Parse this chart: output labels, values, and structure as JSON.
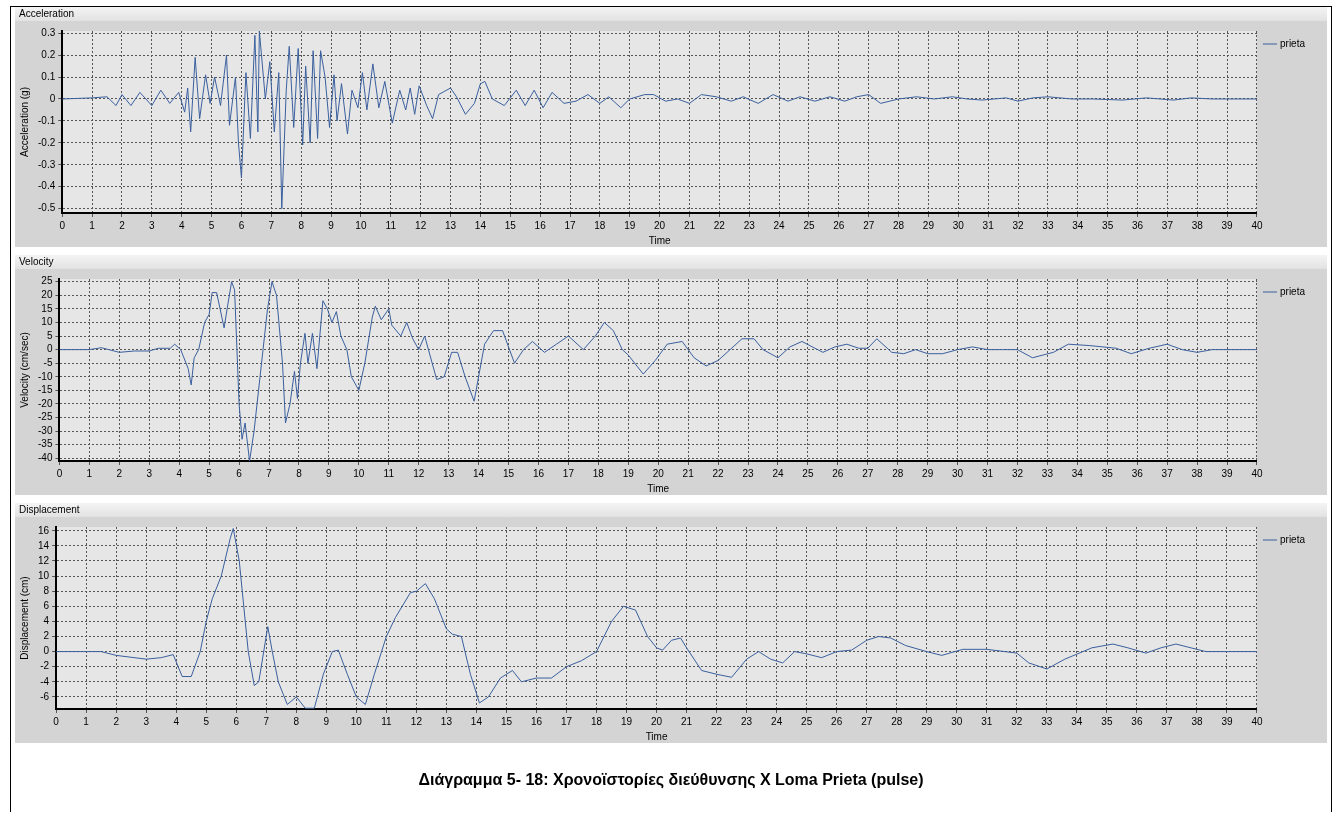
{
  "chart_data": [
    {
      "type": "line",
      "title": "Acceleration",
      "xlabel": "Time",
      "ylabel": "Acceleration (g)",
      "xlim": [
        0,
        40
      ],
      "xticks": [
        0,
        1,
        2,
        3,
        4,
        5,
        6,
        7,
        8,
        9,
        10,
        11,
        12,
        13,
        14,
        15,
        16,
        17,
        18,
        19,
        20,
        21,
        22,
        23,
        24,
        25,
        26,
        27,
        28,
        29,
        30,
        31,
        32,
        33,
        34,
        35,
        36,
        37,
        38,
        39,
        40
      ],
      "ylim": [
        -0.52,
        0.31
      ],
      "yticks": [
        -0.5,
        -0.4,
        -0.3,
        -0.2,
        -0.1,
        0,
        0.1,
        0.2,
        0.3
      ],
      "grid": true,
      "legend": "right",
      "marker": "none",
      "x": [
        0,
        1,
        1.5,
        1.8,
        2,
        2.3,
        2.6,
        3,
        3.3,
        3.6,
        3.9,
        4.1,
        4.2,
        4.3,
        4.45,
        4.6,
        4.8,
        4.95,
        5.1,
        5.3,
        5.5,
        5.6,
        5.8,
        5.9,
        6,
        6.15,
        6.3,
        6.45,
        6.55,
        6.6,
        6.8,
        6.95,
        7.1,
        7.25,
        7.35,
        7.5,
        7.6,
        7.75,
        7.9,
        8.05,
        8.15,
        8.3,
        8.4,
        8.55,
        8.65,
        8.8,
        8.95,
        9.1,
        9.2,
        9.35,
        9.55,
        9.7,
        9.9,
        10.05,
        10.2,
        10.4,
        10.6,
        10.8,
        11.05,
        11.3,
        11.5,
        11.65,
        11.8,
        11.95,
        12.2,
        12.4,
        12.6,
        13,
        13.2,
        13.5,
        13.8,
        14,
        14.15,
        14.4,
        14.8,
        15.2,
        15.5,
        15.8,
        16.1,
        16.4,
        16.8,
        17.2,
        17.6,
        18,
        18.3,
        18.7,
        19,
        19.5,
        19.8,
        20.2,
        20.6,
        21,
        21.4,
        21.9,
        22.4,
        22.8,
        23.3,
        23.8,
        24.3,
        24.7,
        25.2,
        25.7,
        26.2,
        26.6,
        27,
        27.4,
        28,
        28.6,
        29.2,
        29.8,
        30.3,
        30.8,
        31.6,
        32,
        32.5,
        33,
        33.8,
        34.5,
        35.5,
        36.3,
        37.2,
        37.8,
        38.5,
        40
      ],
      "series": [
        {
          "name": "prieta",
          "color": "#3a5f9e",
          "values": [
            0,
            0.005,
            0.01,
            -0.03,
            0.02,
            -0.03,
            0.03,
            -0.03,
            0.04,
            -0.02,
            0.03,
            -0.06,
            0.05,
            -0.15,
            0.19,
            -0.09,
            0.11,
            -0.02,
            0.1,
            -0.03,
            0.2,
            -0.12,
            0.1,
            -0.2,
            -0.36,
            0.12,
            -0.18,
            0.29,
            -0.15,
            0.31,
            0,
            0.17,
            -0.15,
            0.12,
            -0.5,
            0.04,
            0.24,
            -0.13,
            0.23,
            -0.21,
            0.15,
            -0.2,
            0.22,
            -0.18,
            0.22,
            0.1,
            -0.13,
            0.11,
            -0.1,
            0.07,
            -0.16,
            0.04,
            -0.04,
            0.12,
            -0.05,
            0.16,
            -0.04,
            0.08,
            -0.11,
            0.04,
            -0.05,
            0.05,
            -0.07,
            0.06,
            -0.03,
            -0.09,
            0.02,
            0.05,
            0.01,
            -0.07,
            -0.02,
            0.07,
            0.08,
            0,
            -0.03,
            0.04,
            -0.03,
            0.04,
            -0.04,
            0.03,
            -0.02,
            -0.01,
            0.02,
            -0.02,
            0.01,
            -0.04,
            0,
            0.02,
            0.02,
            -0.01,
            0,
            -0.02,
            0.02,
            0.01,
            -0.01,
            0.01,
            -0.02,
            0.02,
            -0.01,
            0.01,
            -0.01,
            0.01,
            -0.01,
            0.01,
            0.02,
            -0.02,
            0,
            0.01,
            0,
            0.01,
            0,
            -0.005,
            0.005,
            -0.01,
            0.005,
            0.01,
            0,
            0,
            -0.005,
            0.005,
            -0.005,
            0.005,
            0,
            0
          ]
        }
      ]
    },
    {
      "type": "line",
      "title": "Velocity",
      "xlabel": "Time",
      "ylabel": "Velocity (cm/sec)",
      "xlim": [
        0,
        40
      ],
      "xticks": [
        0,
        1,
        2,
        3,
        4,
        5,
        6,
        7,
        8,
        9,
        10,
        11,
        12,
        13,
        14,
        15,
        16,
        17,
        18,
        19,
        20,
        21,
        22,
        23,
        24,
        25,
        26,
        27,
        28,
        29,
        30,
        31,
        32,
        33,
        34,
        35,
        36,
        37,
        38,
        39,
        40
      ],
      "ylim": [
        -41,
        26
      ],
      "yticks": [
        -40,
        -35,
        -30,
        -25,
        -20,
        -15,
        -10,
        -5,
        0,
        5,
        10,
        15,
        20,
        25
      ],
      "grid": true,
      "legend": "right",
      "marker": "none",
      "x": [
        0,
        1,
        1.4,
        2,
        2.5,
        3,
        3.3,
        3.7,
        3.85,
        4.05,
        4.3,
        4.4,
        4.5,
        4.65,
        4.85,
        5,
        5.1,
        5.25,
        5.5,
        5.6,
        5.75,
        5.85,
        6,
        6.1,
        6.2,
        6.35,
        6.5,
        6.65,
        6.8,
        6.95,
        7.1,
        7.25,
        7.45,
        7.55,
        7.7,
        7.85,
        7.95,
        8.05,
        8.2,
        8.3,
        8.45,
        8.6,
        8.8,
        8.95,
        9.1,
        9.25,
        9.4,
        9.6,
        9.75,
        10,
        10.2,
        10.45,
        10.55,
        10.75,
        11,
        11.1,
        11.4,
        11.6,
        11.8,
        12,
        12.2,
        12.6,
        12.85,
        13.1,
        13.3,
        13.55,
        13.85,
        14.2,
        14.5,
        14.8,
        15.2,
        15.5,
        15.8,
        16.2,
        16.6,
        17,
        17.5,
        17.9,
        18.2,
        18.5,
        18.8,
        19,
        19.5,
        19.9,
        20.3,
        20.8,
        21.2,
        21.6,
        22,
        22.5,
        22.8,
        23.2,
        23.5,
        24,
        24.4,
        24.8,
        25.5,
        25.9,
        26.3,
        26.7,
        27,
        27.3,
        27.8,
        28.2,
        28.6,
        29,
        29.5,
        30,
        30.5,
        31,
        31.5,
        32,
        32.5,
        33.2,
        33.7,
        34.4,
        35.3,
        35.8,
        36.4,
        37,
        37.5,
        38,
        38.5,
        40
      ],
      "series": [
        {
          "name": "prieta",
          "color": "#3a5f9e",
          "values": [
            0,
            0,
            0.7,
            -1,
            -0.5,
            -0.5,
            0.5,
            0.5,
            2,
            0,
            -7,
            -13,
            -3,
            0,
            10,
            13,
            21,
            21,
            8,
            15,
            25,
            22,
            -20,
            -33,
            -27,
            -41,
            -30,
            -15,
            0,
            15,
            25,
            20,
            -5,
            -27,
            -20,
            -8,
            -18,
            -5,
            6,
            -5,
            6,
            -7,
            18,
            15,
            10,
            14,
            5,
            0,
            -10,
            -15,
            -5,
            12,
            16,
            11,
            15,
            9,
            5,
            10,
            4,
            0,
            5,
            -11,
            -10,
            -1,
            -1,
            -10,
            -19,
            2,
            7,
            7,
            -5,
            0,
            3,
            -1,
            2,
            5,
            0,
            5,
            10,
            7,
            0,
            -2,
            -9,
            -4,
            2,
            3,
            -3,
            -6,
            -4,
            1,
            4,
            4,
            0,
            -3,
            1,
            3,
            -1,
            1,
            2,
            0.5,
            0.5,
            4,
            -1,
            -1.5,
            0,
            -1.5,
            -1.5,
            0,
            1,
            0,
            0,
            0,
            -3,
            -1,
            2,
            1.5,
            0.5,
            -1.5,
            0.5,
            2,
            0,
            -1,
            0,
            0
          ]
        }
      ]
    },
    {
      "type": "line",
      "title": "Displacement",
      "xlabel": "Time",
      "ylabel": "Displacement (cm)",
      "xlim": [
        0,
        40
      ],
      "xticks": [
        0,
        1,
        2,
        3,
        4,
        5,
        6,
        7,
        8,
        9,
        10,
        11,
        12,
        13,
        14,
        15,
        16,
        17,
        18,
        19,
        20,
        21,
        22,
        23,
        24,
        25,
        26,
        27,
        28,
        29,
        30,
        31,
        32,
        33,
        34,
        35,
        36,
        37,
        38,
        39,
        40
      ],
      "ylim": [
        -7.6,
        16.5
      ],
      "yticks": [
        -6,
        -4,
        -2,
        0,
        2,
        4,
        6,
        8,
        10,
        12,
        14,
        16
      ],
      "grid": true,
      "legend": "right",
      "marker": "none",
      "annotations": [
        "Διάγραμμα 5- 18: Χρονοϊστορίες διεύθυνσης X Loma Prieta  (pulse)"
      ],
      "x": [
        0,
        1,
        1.5,
        2,
        3,
        3.5,
        3.9,
        4.2,
        4.5,
        4.8,
        5,
        5.2,
        5.5,
        5.8,
        5.9,
        6.1,
        6.4,
        6.6,
        6.75,
        7.05,
        7.2,
        7.4,
        7.7,
        8,
        8.3,
        8.6,
        8.9,
        9.2,
        9.4,
        9.7,
        10,
        10.3,
        10.6,
        11,
        11.3,
        11.8,
        12,
        12.3,
        12.6,
        13,
        13.2,
        13.5,
        13.8,
        14.1,
        14.4,
        14.8,
        15.2,
        15.5,
        16,
        16.5,
        17,
        17.5,
        18,
        18.5,
        18.9,
        19.3,
        19.7,
        20,
        20.2,
        20.5,
        20.8,
        21,
        21.5,
        22,
        22.5,
        23,
        23.4,
        23.8,
        24.2,
        24.6,
        25,
        25.5,
        26,
        26.5,
        27,
        27.4,
        27.8,
        28.3,
        29,
        29.5,
        30.2,
        31,
        32,
        32.4,
        33,
        33.6,
        34.5,
        35.2,
        35.7,
        36.3,
        36.8,
        37.3,
        37.8,
        38.3,
        40
      ],
      "series": [
        {
          "name": "prieta",
          "color": "#3a5f9e",
          "values": [
            0,
            0,
            0,
            -0.5,
            -1,
            -0.8,
            -0.4,
            -3.3,
            -3.3,
            0,
            4,
            7,
            10,
            15,
            16.3,
            12,
            0,
            -4.5,
            -4,
            3.3,
            0,
            -4,
            -7,
            -6,
            -7.5,
            -7.5,
            -3,
            0,
            0.2,
            -3,
            -6,
            -7,
            -3,
            2,
            4.5,
            7.8,
            8,
            9,
            7,
            3,
            2.3,
            2,
            -3,
            -6.8,
            -6,
            -3.5,
            -2.5,
            -4,
            -3.5,
            -3.5,
            -2,
            -1.2,
            0,
            4,
            6,
            5.5,
            2,
            0.5,
            0.2,
            1.5,
            1.8,
            0.5,
            -2.5,
            -3,
            -3.4,
            -1,
            0,
            -1,
            -1.5,
            0,
            -0.3,
            -0.8,
            0,
            0.2,
            1.5,
            2,
            1.8,
            0.8,
            0,
            -0.5,
            0.3,
            0.3,
            -0.2,
            -1.5,
            -2.3,
            -1,
            0.5,
            1,
            0.5,
            -0.2,
            0.5,
            1,
            0.5,
            0,
            0
          ]
        }
      ]
    }
  ]
}
